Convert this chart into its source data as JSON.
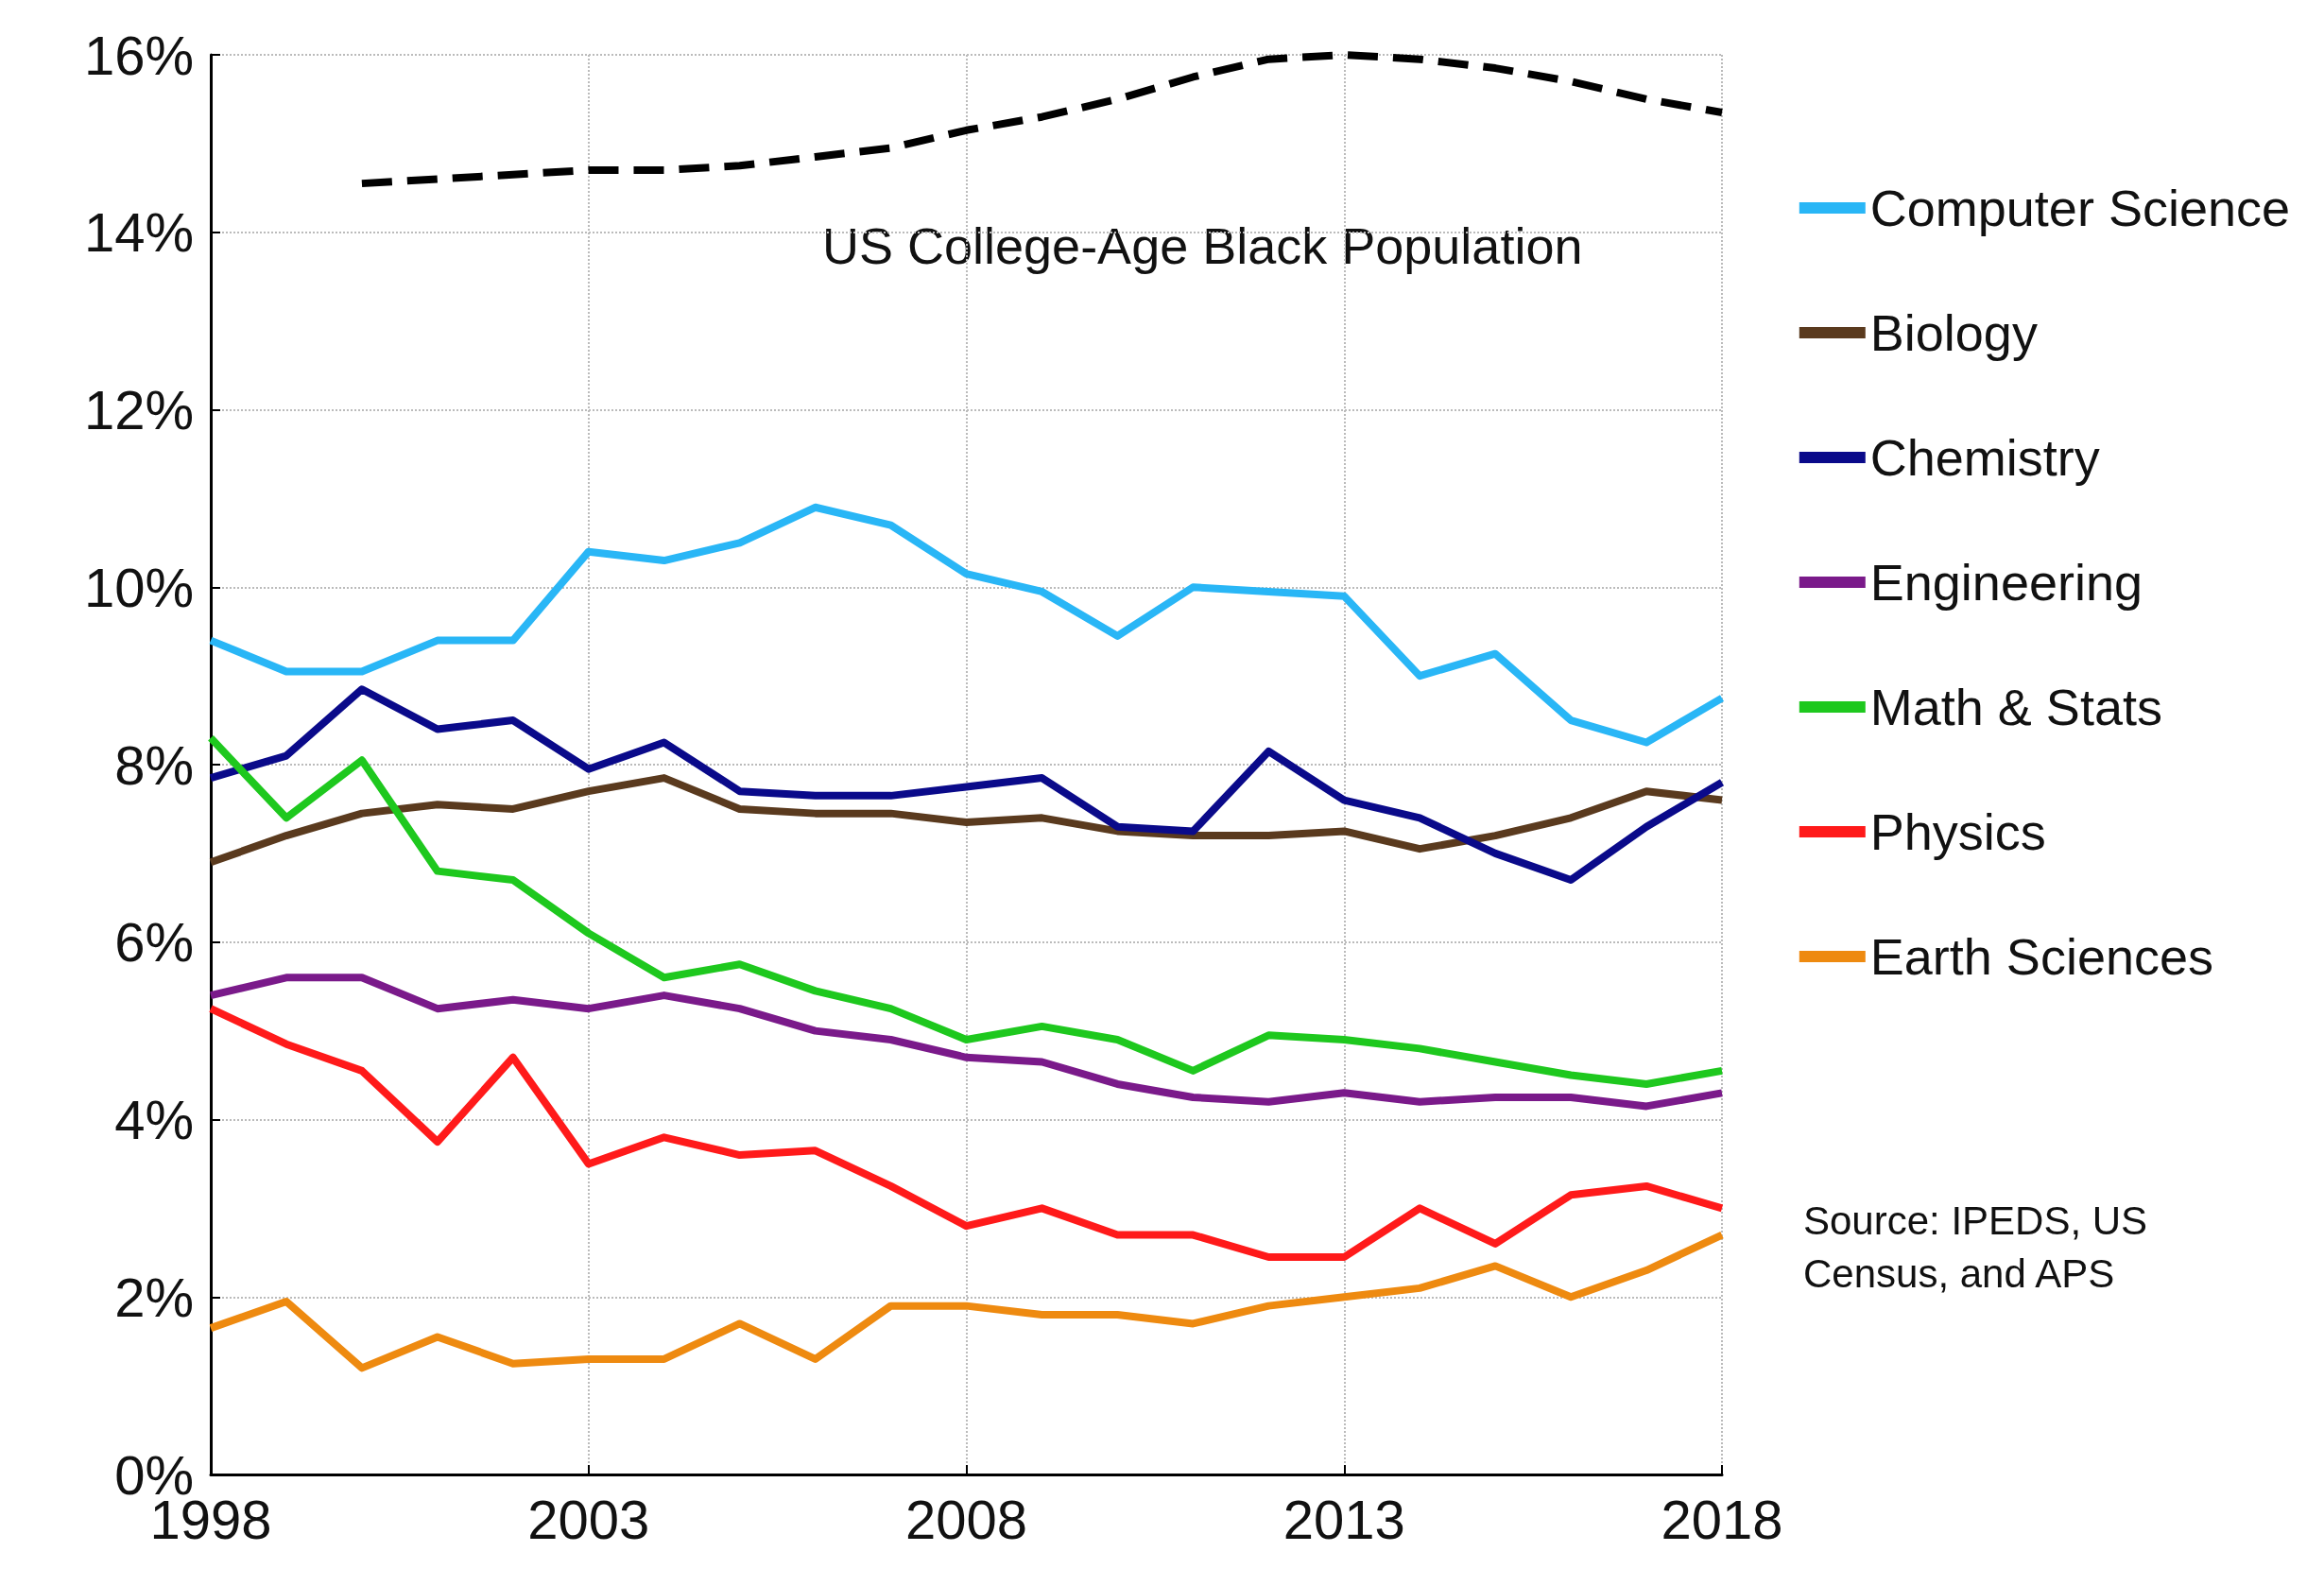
{
  "chart_data": {
    "type": "line",
    "x": [
      1998,
      1999,
      2000,
      2001,
      2002,
      2003,
      2004,
      2005,
      2006,
      2007,
      2008,
      2009,
      2010,
      2011,
      2012,
      2013,
      2014,
      2015,
      2016,
      2017,
      2018
    ],
    "series": [
      {
        "name": "Computer Science",
        "color": "#29b6f6",
        "values": [
          9.4,
          9.05,
          9.05,
          9.4,
          9.4,
          10.4,
          10.3,
          10.5,
          10.9,
          10.7,
          10.15,
          9.95,
          9.45,
          10.0,
          9.95,
          9.9,
          9.0,
          9.25,
          8.5,
          8.25,
          8.75
        ]
      },
      {
        "name": "Biology",
        "color": "#5a3a1e",
        "values": [
          6.9,
          7.2,
          7.45,
          7.55,
          7.5,
          7.7,
          7.85,
          7.5,
          7.45,
          7.45,
          7.35,
          7.4,
          7.25,
          7.2,
          7.2,
          7.25,
          7.05,
          7.2,
          7.4,
          7.7,
          7.6
        ]
      },
      {
        "name": "Chemistry",
        "color": "#0a0a8a",
        "values": [
          7.85,
          8.1,
          8.85,
          8.4,
          8.5,
          7.95,
          8.25,
          7.7,
          7.65,
          7.65,
          7.75,
          7.85,
          7.3,
          7.25,
          8.15,
          7.6,
          7.4,
          7.0,
          6.7,
          7.3,
          7.8
        ]
      },
      {
        "name": "Engineering",
        "color": "#7a1a8a",
        "values": [
          5.4,
          5.6,
          5.6,
          5.25,
          5.35,
          5.25,
          5.4,
          5.25,
          5.0,
          4.9,
          4.7,
          4.65,
          4.4,
          4.25,
          4.2,
          4.3,
          4.2,
          4.25,
          4.25,
          4.15,
          4.3
        ]
      },
      {
        "name": "Math & Stats",
        "color": "#1ec81e",
        "values": [
          8.3,
          7.4,
          8.05,
          6.8,
          6.7,
          6.1,
          5.6,
          5.75,
          5.45,
          5.25,
          4.9,
          5.05,
          4.9,
          4.55,
          4.95,
          4.9,
          4.8,
          4.65,
          4.5,
          4.4,
          4.55
        ]
      },
      {
        "name": "Physics",
        "color": "#ff1a1a",
        "values": [
          5.25,
          4.85,
          4.55,
          3.75,
          4.7,
          3.5,
          3.8,
          3.6,
          3.65,
          3.25,
          2.8,
          3.0,
          2.7,
          2.7,
          2.45,
          2.45,
          3.0,
          2.6,
          3.15,
          3.25,
          3.0
        ]
      },
      {
        "name": "Earth Sciences",
        "color": "#ee8a10",
        "values": [
          1.65,
          1.95,
          1.2,
          1.55,
          1.25,
          1.3,
          1.3,
          1.7,
          1.3,
          1.9,
          1.9,
          1.8,
          1.8,
          1.7,
          1.9,
          2.0,
          2.1,
          2.35,
          2.0,
          2.3,
          2.7
        ]
      },
      {
        "name": "US College-Age Black Population",
        "color": "#000000",
        "line_style": "dashed",
        "values": [
          null,
          null,
          14.55,
          14.6,
          14.65,
          14.7,
          14.7,
          14.75,
          14.85,
          14.95,
          15.15,
          15.3,
          15.5,
          15.75,
          15.95,
          16.0,
          15.95,
          15.85,
          15.7,
          15.5,
          15.35
        ]
      }
    ],
    "xlim": [
      1998,
      2018
    ],
    "xticks": [
      1998,
      2003,
      2008,
      2013,
      2018
    ],
    "ylim": [
      0,
      16
    ],
    "yticks": [
      {
        "value": 0,
        "label": "0%"
      },
      {
        "value": 2,
        "label": "2%"
      },
      {
        "value": 4,
        "label": "4%"
      },
      {
        "value": 6,
        "label": "6%"
      },
      {
        "value": 8,
        "label": "8%"
      },
      {
        "value": 10,
        "label": "10%"
      },
      {
        "value": 12,
        "label": "12%"
      },
      {
        "value": 14,
        "label": "14%"
      },
      {
        "value": 16,
        "label": "16%"
      }
    ],
    "grid": true,
    "legend": "right",
    "line_style": "solid",
    "marker": "none",
    "annotations": [
      "Source: IPEDS, US Census, and APS"
    ]
  }
}
